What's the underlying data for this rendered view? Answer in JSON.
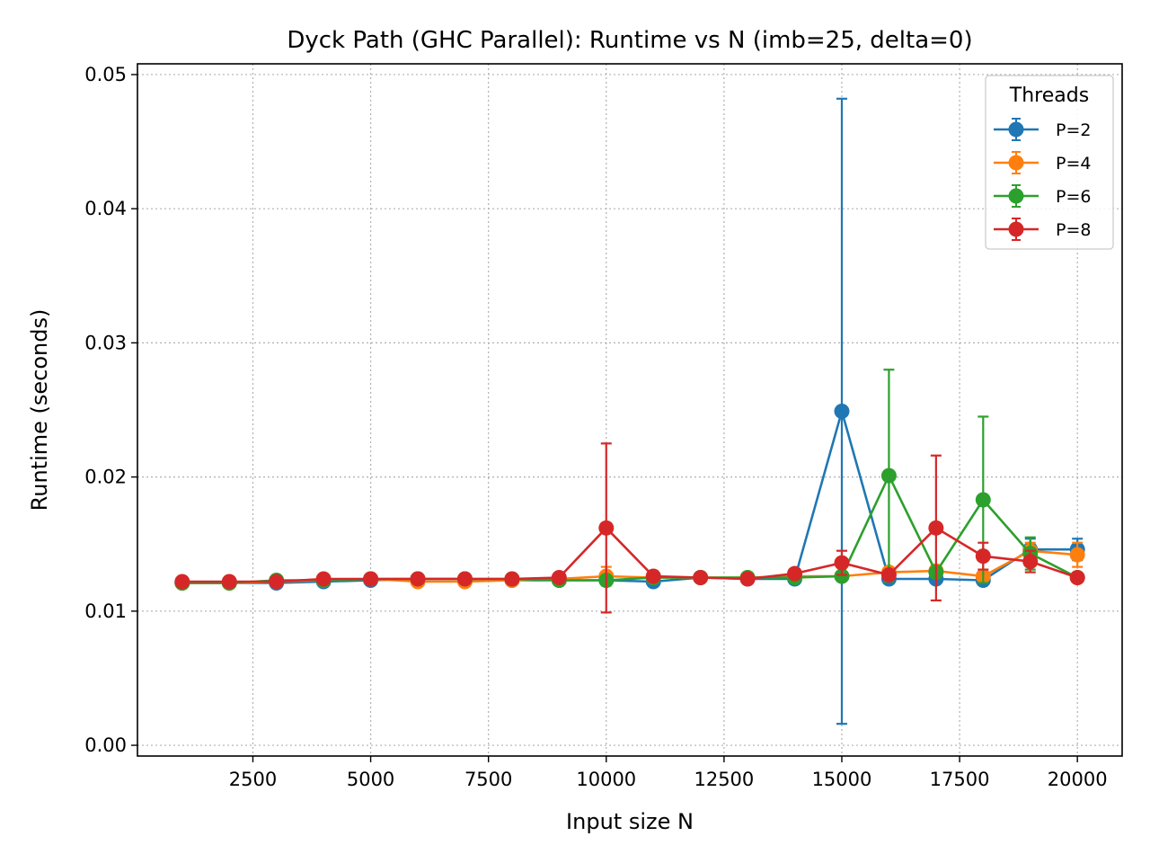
{
  "chart_data": {
    "type": "line",
    "title": "Dyck Path (GHC Parallel): Runtime vs N  (imb=25, delta=0)",
    "xlabel": "Input size N",
    "ylabel": "Runtime (seconds)",
    "xlim": [
      50,
      20950
    ],
    "ylim": [
      -0.0008,
      0.0508
    ],
    "xticks": [
      2500,
      5000,
      7500,
      10000,
      12500,
      15000,
      17500,
      20000
    ],
    "yticks": [
      0.0,
      0.01,
      0.02,
      0.03,
      0.04,
      0.05
    ],
    "ytick_labels": [
      "0.00",
      "0.01",
      "0.02",
      "0.03",
      "0.04",
      "0.05"
    ],
    "grid": true,
    "legend_title": "Threads",
    "legend_position": "top-right",
    "x": [
      1000,
      2000,
      3000,
      4000,
      5000,
      6000,
      7000,
      8000,
      9000,
      10000,
      11000,
      12000,
      13000,
      14000,
      15000,
      16000,
      17000,
      18000,
      19000,
      20000
    ],
    "series": [
      {
        "name": "P=2",
        "color": "#1f77b4",
        "values": [
          0.0121,
          0.0121,
          0.0121,
          0.0122,
          0.0123,
          0.0124,
          0.0124,
          0.0123,
          0.0123,
          0.0123,
          0.0122,
          0.0125,
          0.0124,
          0.0124,
          0.0249,
          0.0124,
          0.0124,
          0.0123,
          0.0146,
          0.0146
        ],
        "errors": [
          0.0001,
          0.0001,
          0.0001,
          0.0001,
          0.0001,
          0.0001,
          0.0001,
          0.0001,
          0.0001,
          0.0001,
          0.0001,
          0.0001,
          0.0001,
          0.0001,
          0.0233,
          0.0002,
          0.0002,
          0.0002,
          0.0008,
          0.0008
        ]
      },
      {
        "name": "P=4",
        "color": "#ff7f0e",
        "values": [
          0.0121,
          0.0121,
          0.0122,
          0.0123,
          0.0124,
          0.0122,
          0.0122,
          0.0123,
          0.0124,
          0.0126,
          0.0125,
          0.0125,
          0.0125,
          0.0126,
          0.0126,
          0.0129,
          0.013,
          0.0126,
          0.0145,
          0.0142
        ],
        "errors": [
          0.0001,
          0.0001,
          0.0001,
          0.0001,
          0.0001,
          0.0001,
          0.0001,
          0.0001,
          0.0001,
          0.0007,
          0.0001,
          0.0001,
          0.0001,
          0.0002,
          0.0002,
          0.0003,
          0.0004,
          0.0003,
          0.0006,
          0.0009
        ]
      },
      {
        "name": "P=6",
        "color": "#2ca02c",
        "values": [
          0.0121,
          0.0121,
          0.0123,
          0.0123,
          0.0124,
          0.0124,
          0.0124,
          0.0124,
          0.0123,
          0.0123,
          0.0125,
          0.0125,
          0.0125,
          0.0125,
          0.0126,
          0.0201,
          0.0129,
          0.0183,
          0.0143,
          0.0125
        ],
        "errors": [
          0.0001,
          0.0001,
          0.0001,
          0.0001,
          0.0001,
          0.0001,
          0.0001,
          0.0001,
          0.0001,
          0.0002,
          0.0001,
          0.0001,
          0.0002,
          0.0002,
          0.0002,
          0.0079,
          0.0003,
          0.0062,
          0.0012,
          0.0003
        ]
      },
      {
        "name": "P=8",
        "color": "#d62728",
        "values": [
          0.0122,
          0.0122,
          0.0122,
          0.0124,
          0.0124,
          0.0124,
          0.0124,
          0.0124,
          0.0125,
          0.0162,
          0.0126,
          0.0125,
          0.0124,
          0.0128,
          0.0136,
          0.0127,
          0.0162,
          0.0141,
          0.0137,
          0.0125
        ],
        "errors": [
          0.0001,
          0.0001,
          0.0001,
          0.0001,
          0.0001,
          0.0001,
          0.0001,
          0.0001,
          0.0001,
          0.0063,
          0.0001,
          0.0001,
          0.0001,
          0.0002,
          0.0009,
          0.0002,
          0.0054,
          0.001,
          0.0008,
          0.0003
        ]
      }
    ]
  }
}
